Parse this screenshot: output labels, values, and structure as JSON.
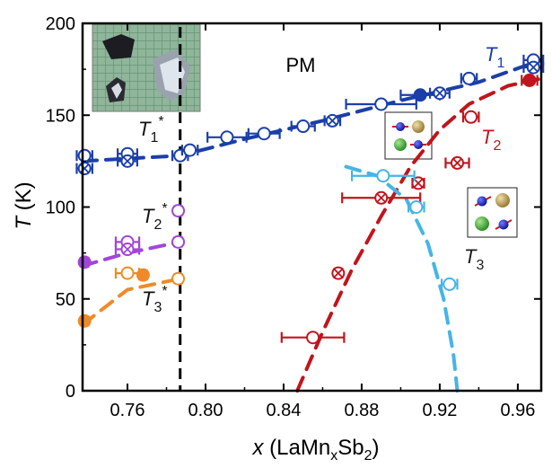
{
  "chart_data": {
    "type": "scatter",
    "title": "",
    "xlabel_var": "x",
    "xlabel_rest": " (LaMn",
    "xlabel_sub1": "x",
    "xlabel_mid": "Sb",
    "xlabel_sub2": "2",
    "xlabel_end": ")",
    "ylabel_var": "T",
    "ylabel_rest": " (K)",
    "xlim": [
      0.737,
      0.972
    ],
    "ylim": [
      0,
      200
    ],
    "x_ticks": [
      0.76,
      0.8,
      0.84,
      0.88,
      0.92,
      0.96
    ],
    "x_tick_labels": [
      "0.76",
      "0.80",
      "0.84",
      "0.88",
      "0.92",
      "0.96"
    ],
    "y_ticks": [
      0,
      50,
      100,
      150,
      200
    ],
    "y_tick_labels": [
      "0",
      "50",
      "100",
      "150",
      "200"
    ],
    "region_label": "PM",
    "boundary_x": 0.787,
    "series": [
      {
        "key": "T1",
        "name": "T",
        "sub": "1",
        "color": "#1a3fa8",
        "fit": {
          "x": [
            0.737,
            0.787,
            0.82,
            0.86,
            0.9,
            0.94,
            0.972
          ],
          "y": [
            125,
            128,
            137,
            147,
            158,
            168,
            180
          ]
        },
        "points": [
          {
            "x": 0.738,
            "y": 128,
            "xerr": 0.004,
            "marker": "open"
          },
          {
            "x": 0.738,
            "y": 121,
            "xerr": 0.004,
            "marker": "cross"
          },
          {
            "x": 0.76,
            "y": 129,
            "xerr": 0.005,
            "marker": "open"
          },
          {
            "x": 0.76,
            "y": 125,
            "xerr": 0.005,
            "marker": "cross"
          },
          {
            "x": 0.787,
            "y": 128,
            "xerr": 0.004,
            "marker": "open"
          },
          {
            "x": 0.792,
            "y": 131,
            "xerr": 0.004,
            "marker": "open"
          },
          {
            "x": 0.811,
            "y": 138,
            "xerr": 0.01,
            "marker": "open"
          },
          {
            "x": 0.83,
            "y": 140,
            "xerr": 0.008,
            "marker": "open"
          },
          {
            "x": 0.85,
            "y": 144,
            "xerr": 0.006,
            "marker": "open"
          },
          {
            "x": 0.865,
            "y": 147,
            "xerr": 0.004,
            "marker": "cross"
          },
          {
            "x": 0.89,
            "y": 156,
            "xerr": 0.018,
            "marker": "open"
          },
          {
            "x": 0.91,
            "y": 161,
            "xerr": 0.01,
            "marker": "filled"
          },
          {
            "x": 0.92,
            "y": 162,
            "xerr": 0.005,
            "marker": "cross"
          },
          {
            "x": 0.935,
            "y": 170,
            "xerr": 0.004,
            "marker": "open"
          },
          {
            "x": 0.968,
            "y": 180,
            "xerr": 0.005,
            "marker": "open"
          },
          {
            "x": 0.968,
            "y": 176,
            "xerr": 0.005,
            "marker": "cross"
          }
        ]
      },
      {
        "key": "T2",
        "name": "T",
        "sub": "2",
        "color": "#c0151c",
        "fit": {
          "x": [
            0.847,
            0.86,
            0.875,
            0.89,
            0.905,
            0.92,
            0.935,
            0.955,
            0.972
          ],
          "y": [
            0,
            32,
            66,
            95,
            122,
            142,
            156,
            166,
            170
          ]
        },
        "points": [
          {
            "x": 0.855,
            "y": 29,
            "xerr": 0.016,
            "marker": "open"
          },
          {
            "x": 0.868,
            "y": 64,
            "xerr": 0.002,
            "marker": "cross"
          },
          {
            "x": 0.89,
            "y": 105,
            "xerr": 0.02,
            "marker": "cross"
          },
          {
            "x": 0.909,
            "y": 113,
            "xerr": 0.003,
            "marker": "cross"
          },
          {
            "x": 0.929,
            "y": 124,
            "xerr": 0.006,
            "marker": "cross"
          },
          {
            "x": 0.936,
            "y": 149,
            "xerr": 0.004,
            "marker": "open"
          },
          {
            "x": 0.966,
            "y": 169,
            "xerr": 0.004,
            "marker": "filled"
          }
        ]
      },
      {
        "key": "T3",
        "name": "T",
        "sub": "3",
        "color": "#45b5e6",
        "fit": {
          "x": [
            0.872,
            0.888,
            0.903,
            0.914,
            0.922,
            0.927,
            0.929
          ],
          "y": [
            122,
            117,
            104,
            80,
            50,
            20,
            0
          ]
        },
        "points": [
          {
            "x": 0.891,
            "y": 117,
            "xerr": 0.016,
            "marker": "open"
          },
          {
            "x": 0.908,
            "y": 100,
            "xerr": 0.004,
            "marker": "open"
          },
          {
            "x": 0.925,
            "y": 58,
            "xerr": 0.004,
            "marker": "open"
          }
        ]
      },
      {
        "key": "T2star",
        "name": "T",
        "sub": "2",
        "sup": "*",
        "color": "#a246d8",
        "fit": {
          "x": [
            0.737,
            0.76,
            0.787
          ],
          "y": [
            68,
            75,
            81
          ]
        },
        "points": [
          {
            "x": 0.738,
            "y": 70,
            "xerr": 0.002,
            "marker": "filled"
          },
          {
            "x": 0.76,
            "y": 81,
            "xerr": 0.006,
            "marker": "open"
          },
          {
            "x": 0.76,
            "y": 77,
            "xerr": 0.006,
            "marker": "cross"
          },
          {
            "x": 0.786,
            "y": 81,
            "xerr": 0.002,
            "marker": "open"
          },
          {
            "x": 0.786,
            "y": 98,
            "xerr": 0.002,
            "marker": "open"
          }
        ]
      },
      {
        "key": "T3star",
        "name": "T",
        "sub": "3",
        "sup": "*",
        "color": "#f08a28",
        "fit": {
          "x": [
            0.737,
            0.76,
            0.787
          ],
          "y": [
            36,
            55,
            61
          ]
        },
        "points": [
          {
            "x": 0.738,
            "y": 38,
            "xerr": 0.002,
            "marker": "filled"
          },
          {
            "x": 0.76,
            "y": 64,
            "xerr": 0.006,
            "marker": "open"
          },
          {
            "x": 0.768,
            "y": 63,
            "xerr": 0.002,
            "marker": "filled"
          },
          {
            "x": 0.786,
            "y": 61,
            "xerr": 0.002,
            "marker": "open"
          }
        ]
      }
    ]
  }
}
